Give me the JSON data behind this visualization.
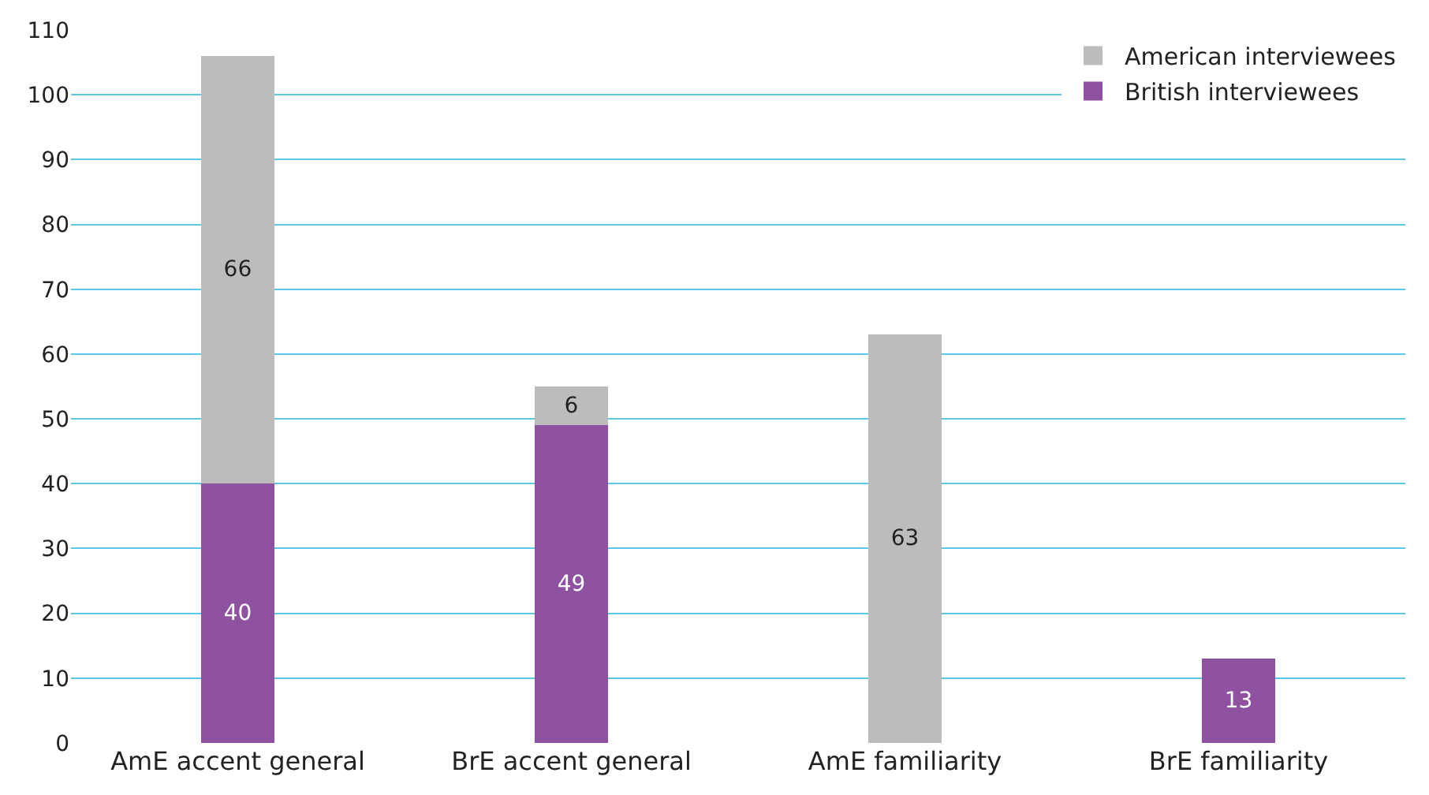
{
  "chart_data": {
    "type": "bar",
    "stacked": true,
    "categories": [
      "AmE accent general",
      "BrE accent general",
      "AmE familiarity",
      "BrE familiarity"
    ],
    "series": [
      {
        "name": "British interviewees",
        "color": "#8e52a1",
        "values": [
          40,
          49,
          null,
          13
        ]
      },
      {
        "name": "American interviewees",
        "color": "#bcbcbc",
        "values": [
          66,
          6,
          63,
          null
        ]
      }
    ],
    "ylim": [
      0,
      110
    ],
    "yticks": [
      0,
      10,
      20,
      30,
      40,
      50,
      60,
      70,
      80,
      90,
      100,
      110
    ],
    "grid": "y",
    "legend": "top right",
    "data_labels": true
  }
}
